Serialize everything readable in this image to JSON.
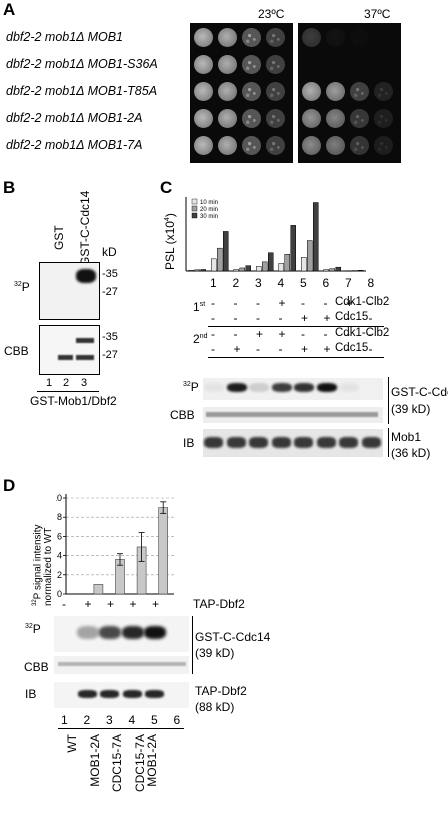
{
  "panel_a": {
    "letter": "A",
    "temps": [
      "23ºC",
      "37ºC"
    ],
    "strains": [
      {
        "name": "dbf2-2 mob1Δ MOB1",
        "growth37": 0.05
      },
      {
        "name": "dbf2-2 mob1Δ MOB1-S36A",
        "growth37": 0.0
      },
      {
        "name": "dbf2-2 mob1Δ MOB1-T85A",
        "growth37": 0.9
      },
      {
        "name": "dbf2-2 mob1Δ MOB1-2A",
        "growth37": 0.75
      },
      {
        "name": "dbf2-2 mob1Δ MOB1-7A",
        "growth37": 0.7
      }
    ]
  },
  "panel_b": {
    "letter": "B",
    "columns": [
      "GST",
      "GST-C-Cdc14"
    ],
    "kd_label": "kD",
    "markers_top": [
      "35",
      "27"
    ],
    "markers_bottom": [
      "35",
      "27"
    ],
    "row_p32": "32P",
    "row_cbb": "CBB",
    "lanes": [
      "1",
      "2",
      "3"
    ],
    "footer": "GST-Mob1/Dbf2"
  },
  "panel_c": {
    "letter": "C",
    "ylabel": "PSL (x10",
    "ylabel_sup": "4",
    "ylabel_end": ")",
    "legend": [
      "10 min",
      "20 min",
      "30 min"
    ],
    "lanes": [
      "1",
      "2",
      "3",
      "4",
      "5",
      "6",
      "7",
      "8"
    ],
    "row1_label": "1",
    "row1_sup": "st",
    "row2_label": "2",
    "row2_sup": "nd",
    "treat1_cdk": [
      "-",
      "-",
      "-",
      "+",
      "-",
      "-",
      "+",
      "-"
    ],
    "treat1_cdc15": [
      "-",
      "-",
      "-",
      "-",
      "+",
      "+",
      "-",
      "-"
    ],
    "treat2_cdk": [
      "-",
      "-",
      "+",
      "+",
      "-",
      "-",
      "-",
      "-"
    ],
    "treat2_cdc15": [
      "-",
      "+",
      "-",
      "-",
      "+",
      "+",
      "-",
      "-"
    ],
    "treat_names": [
      "Cdk1-Clb2",
      "Cdc15",
      "Cdk1-Clb2",
      "Cdc15"
    ],
    "blot_labels": {
      "p32": "32P",
      "cbb": "CBB",
      "ib": "IB"
    },
    "right_labels": {
      "sub": "GST-C-Cdc14",
      "sub_kd": "(39 kD)",
      "mob": "Mob1",
      "mob_kd": "(36 kD)"
    }
  },
  "panel_d": {
    "letter": "D",
    "ylabel_lines": [
      "32P signal intensity",
      "normalized to WT"
    ],
    "yticks": [
      "0",
      "2",
      "4",
      "6",
      "8",
      "10"
    ],
    "tap_signs": [
      "-",
      "+",
      "+",
      "+",
      "+"
    ],
    "tap_label": "TAP-Dbf2",
    "blot_labels": {
      "p32": "32P",
      "cbb": "CBB",
      "ib": "IB"
    },
    "right_labels": {
      "sub": "GST-C-Cdc14",
      "sub_kd": "(39 kD)",
      "tap": "TAP-Dbf2",
      "tap_kd": "(88 kD)"
    },
    "lanes": [
      "1",
      "2",
      "3",
      "4",
      "5",
      "6"
    ],
    "strain_labels": [
      "WT",
      "MOB1-2A",
      "CDC15-7A",
      "CDC15-7A MOB1-2A"
    ]
  },
  "chart_data": [
    {
      "type": "bar",
      "categories": [
        "1",
        "2",
        "3",
        "4",
        "5",
        "6",
        "7",
        "8"
      ],
      "series": [
        {
          "name": "10 min",
          "values": [
            0.05,
            0.8,
            0.1,
            0.3,
            0.5,
            0.9,
            0.1,
            0.02
          ]
        },
        {
          "name": "20 min",
          "values": [
            0.08,
            1.5,
            0.2,
            0.6,
            1.1,
            2.0,
            0.15,
            0.03
          ]
        },
        {
          "name": "30 min",
          "values": [
            0.1,
            2.6,
            0.35,
            1.2,
            3.0,
            4.5,
            0.25,
            0.05
          ]
        }
      ],
      "ylabel": "PSL (x10^4)",
      "ylim": [
        0,
        4.6
      ],
      "legend_position": "top-left",
      "colors": [
        "#e6e6e6",
        "#a0a0a0",
        "#404040"
      ]
    },
    {
      "type": "bar",
      "categories": [
        "1",
        "2",
        "3",
        "4",
        "5"
      ],
      "values": [
        0.0,
        1.0,
        3.6,
        4.9,
        9.0
      ],
      "errors": [
        0.0,
        0.0,
        0.6,
        1.5,
        0.6
      ],
      "ylabel": "32P signal intensity normalized to WT",
      "ylim": [
        0,
        10
      ],
      "grid": true,
      "color": "#c8c8c8"
    }
  ]
}
